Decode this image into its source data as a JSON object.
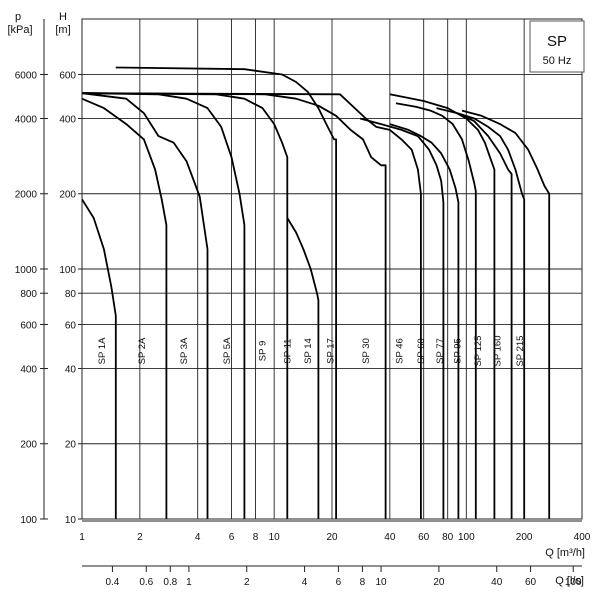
{
  "chart_data": {
    "type": "line",
    "title": "SP",
    "subtitle": "50 Hz",
    "left_axis_label": [
      "p",
      "[kPa]"
    ],
    "head_axis_label": [
      "H",
      "[m]"
    ],
    "x_axis_label": "Q [m³/h]",
    "x2_axis_label": "Q [l/s]",
    "x_scale": "log",
    "y_scale": "log",
    "xlim": [
      1,
      400
    ],
    "ylim": [
      10,
      1000
    ],
    "grid": true,
    "x_ticks": [
      {
        "v": 1,
        "label": "1"
      },
      {
        "v": 2,
        "label": "2"
      },
      {
        "v": 4,
        "label": "4"
      },
      {
        "v": 6,
        "label": "6"
      },
      {
        "v": 8,
        "label": "8"
      },
      {
        "v": 10,
        "label": "10"
      },
      {
        "v": 20,
        "label": "20"
      },
      {
        "v": 40,
        "label": "40"
      },
      {
        "v": 60,
        "label": "60"
      },
      {
        "v": 80,
        "label": "80"
      },
      {
        "v": 100,
        "label": "100"
      },
      {
        "v": 200,
        "label": "200"
      },
      {
        "v": 400,
        "label": "400"
      }
    ],
    "x2_ticks": [
      {
        "v": 0.4,
        "label": "0.4"
      },
      {
        "v": 0.6,
        "label": "0.6"
      },
      {
        "v": 0.8,
        "label": "0.8"
      },
      {
        "v": 1,
        "label": "1"
      },
      {
        "v": 2,
        "label": "2"
      },
      {
        "v": 4,
        "label": "4"
      },
      {
        "v": 6,
        "label": "6"
      },
      {
        "v": 8,
        "label": "8"
      },
      {
        "v": 10,
        "label": "10"
      },
      {
        "v": 20,
        "label": "20"
      },
      {
        "v": 40,
        "label": "40"
      },
      {
        "v": 60,
        "label": "60"
      },
      {
        "v": 100,
        "label": "100"
      }
    ],
    "head_ticks": [
      {
        "v": 10,
        "label": "10"
      },
      {
        "v": 20,
        "label": "20"
      },
      {
        "v": 40,
        "label": "40"
      },
      {
        "v": 60,
        "label": "60"
      },
      {
        "v": 80,
        "label": "80"
      },
      {
        "v": 100,
        "label": "100"
      },
      {
        "v": 200,
        "label": "200"
      },
      {
        "v": 400,
        "label": "400"
      },
      {
        "v": 600,
        "label": "600"
      }
    ],
    "pressure_ticks": [
      {
        "v": 100,
        "label": "100"
      },
      {
        "v": 200,
        "label": "200"
      },
      {
        "v": 400,
        "label": "400"
      },
      {
        "v": 600,
        "label": "600"
      },
      {
        "v": 800,
        "label": "800"
      },
      {
        "v": 1000,
        "label": "1000"
      },
      {
        "v": 2000,
        "label": "2000"
      },
      {
        "v": 4000,
        "label": "4000"
      },
      {
        "v": 6000,
        "label": "6000"
      }
    ],
    "series": [
      {
        "name": "SP 1A",
        "label_q": 1.27,
        "points": [
          [
            1.0,
            190
          ],
          [
            1.15,
            160
          ],
          [
            1.3,
            120
          ],
          [
            1.42,
            85
          ],
          [
            1.5,
            65
          ],
          [
            1.5,
            10
          ]
        ]
      },
      {
        "name": "SP 2A",
        "label_q": 2.05,
        "points": [
          [
            1.0,
            480
          ],
          [
            1.3,
            440
          ],
          [
            1.7,
            380
          ],
          [
            2.1,
            330
          ],
          [
            2.4,
            250
          ],
          [
            2.6,
            190
          ],
          [
            2.75,
            150
          ],
          [
            2.75,
            10
          ]
        ]
      },
      {
        "name": "SP 3A",
        "label_q": 3.4,
        "points": [
          [
            1.0,
            505
          ],
          [
            1.7,
            480
          ],
          [
            2.1,
            420
          ],
          [
            2.5,
            340
          ],
          [
            3.0,
            320
          ],
          [
            3.5,
            270
          ],
          [
            4.1,
            195
          ],
          [
            4.5,
            120
          ],
          [
            4.5,
            10
          ]
        ]
      },
      {
        "name": "SP 5A",
        "label_q": 5.7,
        "points": [
          [
            1.0,
            505
          ],
          [
            2.5,
            500
          ],
          [
            3.5,
            480
          ],
          [
            4.5,
            440
          ],
          [
            5.3,
            370
          ],
          [
            6.0,
            280
          ],
          [
            6.6,
            200
          ],
          [
            7.0,
            150
          ],
          [
            7.0,
            10
          ]
        ]
      },
      {
        "name": "SP 9",
        "label_q": 8.7,
        "points": [
          [
            1.0,
            505
          ],
          [
            5.0,
            500
          ],
          [
            7.0,
            480
          ],
          [
            8.7,
            440
          ],
          [
            10.0,
            380
          ],
          [
            11.0,
            320
          ],
          [
            11.7,
            280
          ],
          [
            11.7,
            10
          ]
        ]
      },
      {
        "name": "SP 11",
        "label_q": 11.7,
        "points": [
          [
            11.7,
            160
          ],
          [
            13.0,
            140
          ],
          [
            14.2,
            120
          ],
          [
            15.5,
            100
          ],
          [
            16.7,
            80
          ],
          [
            17.0,
            75
          ],
          [
            17.0,
            10
          ]
        ]
      },
      {
        "name": "SP 14",
        "label_q": 15.0,
        "points": [
          [
            1.5,
            640
          ],
          [
            7.0,
            630
          ],
          [
            11.0,
            600
          ],
          [
            13.0,
            560
          ],
          [
            15.0,
            510
          ],
          [
            17.0,
            440
          ],
          [
            19.0,
            370
          ],
          [
            20.5,
            330
          ],
          [
            21.0,
            330
          ],
          [
            21.0,
            10
          ]
        ]
      },
      {
        "name": "SP 17",
        "label_q": 19.6,
        "points": [
          [
            1.0,
            505
          ],
          [
            9.0,
            500
          ],
          [
            13.0,
            480
          ],
          [
            17.0,
            450
          ],
          [
            21.0,
            410
          ],
          [
            25.0,
            360
          ],
          [
            29.0,
            330
          ],
          [
            32.0,
            280
          ],
          [
            36.0,
            260
          ],
          [
            38.0,
            260
          ],
          [
            38.0,
            10
          ]
        ]
      },
      {
        "name": "SP 30",
        "label_q": 30.0,
        "points": [
          [
            1.0,
            505
          ],
          [
            22.0,
            500
          ],
          [
            30.0,
            400
          ],
          [
            34.0,
            370
          ],
          [
            40.0,
            360
          ],
          [
            46.0,
            330
          ],
          [
            52.0,
            300
          ],
          [
            56.0,
            250
          ],
          [
            58.0,
            200
          ],
          [
            58.0,
            10
          ]
        ]
      },
      {
        "name": "SP 46",
        "label_q": 45.0,
        "points": [
          [
            28.0,
            400
          ],
          [
            36.0,
            380
          ],
          [
            46.0,
            360
          ],
          [
            56.0,
            340
          ],
          [
            64.0,
            300
          ],
          [
            70.0,
            260
          ],
          [
            74.0,
            225
          ],
          [
            76.0,
            185
          ],
          [
            76.0,
            10
          ]
        ]
      },
      {
        "name": "SP 60",
        "label_q": 58.0,
        "points": [
          [
            40.0,
            380
          ],
          [
            50.0,
            360
          ],
          [
            58.0,
            340
          ],
          [
            66.0,
            320
          ],
          [
            74.0,
            290
          ],
          [
            82.0,
            250
          ],
          [
            88.0,
            210
          ],
          [
            91.0,
            185
          ],
          [
            91.0,
            10
          ]
        ]
      },
      {
        "name": "SP 77",
        "label_q": 73.0,
        "points": [
          [
            43.0,
            460
          ],
          [
            55.0,
            445
          ],
          [
            65.0,
            430
          ],
          [
            75.0,
            410
          ],
          [
            85.0,
            380
          ],
          [
            95.0,
            330
          ],
          [
            103.0,
            270
          ],
          [
            110.0,
            220
          ],
          [
            112.0,
            205
          ],
          [
            112.0,
            10
          ]
        ]
      },
      {
        "name": "SP 95",
        "label_q": 90.0,
        "points": [
          [
            40.0,
            500
          ],
          [
            60.0,
            470
          ],
          [
            80.0,
            440
          ],
          [
            100.0,
            400
          ],
          [
            115.0,
            360
          ],
          [
            125.0,
            320
          ],
          [
            135.0,
            270
          ],
          [
            140.0,
            250
          ],
          [
            140.0,
            10
          ]
        ]
      },
      {
        "name": "SP 125",
        "label_q": 115.0,
        "points": [
          [
            70.0,
            440
          ],
          [
            90.0,
            420
          ],
          [
            110.0,
            390
          ],
          [
            130.0,
            340
          ],
          [
            150.0,
            290
          ],
          [
            165.0,
            250
          ],
          [
            172.0,
            240
          ],
          [
            172.0,
            10
          ]
        ]
      },
      {
        "name": "SP 160",
        "label_q": 145.0,
        "points": [
          [
            90.0,
            420
          ],
          [
            110.0,
            400
          ],
          [
            130.0,
            370
          ],
          [
            150.0,
            340
          ],
          [
            165.0,
            300
          ],
          [
            180.0,
            250
          ],
          [
            195.0,
            200
          ],
          [
            200.0,
            190
          ],
          [
            200.0,
            10
          ]
        ]
      },
      {
        "name": "SP 215",
        "label_q": 190.0,
        "points": [
          [
            95.0,
            430
          ],
          [
            120.0,
            410
          ],
          [
            150.0,
            380
          ],
          [
            180.0,
            350
          ],
          [
            210.0,
            300
          ],
          [
            235.0,
            250
          ],
          [
            255.0,
            215
          ],
          [
            270.0,
            200
          ],
          [
            270.0,
            10
          ]
        ]
      }
    ]
  }
}
